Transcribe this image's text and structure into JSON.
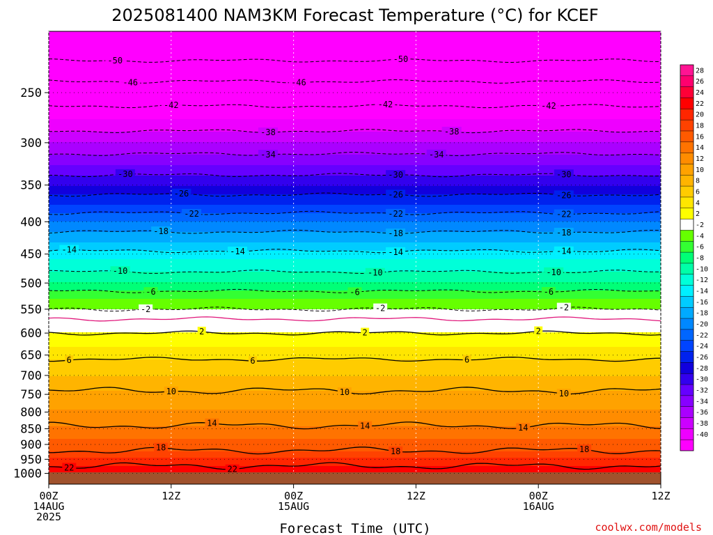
{
  "chart_data": {
    "type": "heatmap",
    "title": "2025081400 NAM3KM Forecast Temperature (°C) for KCEF",
    "xlabel": "Forecast Time (UTC)",
    "x_ticks": [
      {
        "value": 0,
        "lines": [
          "00Z",
          "14AUG",
          "2025"
        ]
      },
      {
        "value": 12,
        "lines": [
          "12Z"
        ]
      },
      {
        "value": 24,
        "lines": [
          "00Z",
          "15AUG"
        ]
      },
      {
        "value": 36,
        "lines": [
          "12Z"
        ]
      },
      {
        "value": 48,
        "lines": [
          "00Z",
          "16AUG"
        ]
      },
      {
        "value": 60,
        "lines": [
          "12Z"
        ]
      }
    ],
    "xlim": [
      0,
      60
    ],
    "ylabel": "",
    "y_scale": "log-pressure",
    "y_ticks": [
      250,
      300,
      350,
      400,
      450,
      500,
      550,
      600,
      650,
      700,
      750,
      800,
      850,
      900,
      950,
      1000
    ],
    "ylim_hpa": [
      200,
      1040
    ],
    "colorbar": {
      "labels": [
        28,
        26,
        24,
        22,
        20,
        18,
        16,
        14,
        12,
        10,
        8,
        6,
        4,
        2,
        -2,
        -4,
        -6,
        -8,
        -10,
        -12,
        -14,
        -16,
        -18,
        -20,
        -22,
        -24,
        -26,
        -28,
        -30,
        -32,
        -34,
        -36,
        -38,
        -40
      ],
      "colors": [
        "#ff1493",
        "#ff006f",
        "#ff0037",
        "#ff0000",
        "#ff2600",
        "#ff4200",
        "#ff5a00",
        "#ff7300",
        "#ff8c00",
        "#ffa200",
        "#ffb400",
        "#ffcc00",
        "#ffe600",
        "#ffff00",
        "#ffffff",
        "#66ff00",
        "#33ff33",
        "#00ff77",
        "#00ffa8",
        "#00ffd9",
        "#00f0ff",
        "#00ccff",
        "#00aaff",
        "#0088ff",
        "#0066ff",
        "#0044ff",
        "#0022ee",
        "#1100dd",
        "#3300ee",
        "#6600ff",
        "#8800ff",
        "#aa00ff",
        "#cc00ff",
        "#ee00ff",
        "#ff00ff"
      ]
    },
    "temperature_profile": [
      {
        "p": 200,
        "t": -56
      },
      {
        "p": 215,
        "t": -52
      },
      {
        "p": 230,
        "t": -48
      },
      {
        "p": 250,
        "t": -44
      },
      {
        "p": 275,
        "t": -40
      },
      {
        "p": 300,
        "t": -36
      },
      {
        "p": 325,
        "t": -32
      },
      {
        "p": 350,
        "t": -28
      },
      {
        "p": 375,
        "t": -24
      },
      {
        "p": 400,
        "t": -20
      },
      {
        "p": 430,
        "t": -16
      },
      {
        "p": 460,
        "t": -12
      },
      {
        "p": 500,
        "t": -8
      },
      {
        "p": 530,
        "t": -4
      },
      {
        "p": 560,
        "t": -1
      },
      {
        "p": 580,
        "t": 1
      },
      {
        "p": 600,
        "t": 2
      },
      {
        "p": 630,
        "t": 4
      },
      {
        "p": 660,
        "t": 6
      },
      {
        "p": 700,
        "t": 8
      },
      {
        "p": 740,
        "t": 10
      },
      {
        "p": 790,
        "t": 12
      },
      {
        "p": 840,
        "t": 14
      },
      {
        "p": 880,
        "t": 16
      },
      {
        "p": 920,
        "t": 18
      },
      {
        "p": 960,
        "t": 21
      },
      {
        "p": 1000,
        "t": 24
      }
    ],
    "contours": [
      {
        "t": -50,
        "style": "dashed",
        "labels": [
          {
            "x": 6.5,
            "text": "-50"
          },
          {
            "x": 34.5,
            "text": "-50"
          }
        ]
      },
      {
        "t": -46,
        "style": "dashed",
        "labels": [
          {
            "x": 8,
            "text": "-46"
          },
          {
            "x": 24.5,
            "text": "-46"
          }
        ]
      },
      {
        "t": -42,
        "style": "dashed",
        "labels": [
          {
            "x": 12,
            "text": "-42"
          },
          {
            "x": 33,
            "text": "-42"
          },
          {
            "x": 49,
            "text": "-42"
          }
        ]
      },
      {
        "t": -38,
        "style": "dashed",
        "labels": [
          {
            "x": 21.5,
            "text": "-38"
          },
          {
            "x": 39.5,
            "text": "-38"
          }
        ]
      },
      {
        "t": -34,
        "style": "dashed",
        "labels": [
          {
            "x": 21.5,
            "text": "-34"
          },
          {
            "x": 38,
            "text": "-34"
          }
        ]
      },
      {
        "t": -30,
        "style": "dashed",
        "labels": [
          {
            "x": 7.5,
            "text": "-30"
          },
          {
            "x": 34,
            "text": "-30"
          },
          {
            "x": 50.5,
            "text": "-30"
          }
        ]
      },
      {
        "t": -26,
        "style": "dashed",
        "labels": [
          {
            "x": 13,
            "text": "-26"
          },
          {
            "x": 34,
            "text": "-26"
          },
          {
            "x": 50.5,
            "text": "-26"
          }
        ]
      },
      {
        "t": -22,
        "style": "dashed",
        "labels": [
          {
            "x": 14,
            "text": "-22"
          },
          {
            "x": 34,
            "text": "-22"
          },
          {
            "x": 50.5,
            "text": "-22"
          }
        ]
      },
      {
        "t": -18,
        "style": "dashed",
        "labels": [
          {
            "x": 11,
            "text": "-18"
          },
          {
            "x": 34,
            "text": "-18"
          },
          {
            "x": 50.5,
            "text": "-18"
          }
        ]
      },
      {
        "t": -14,
        "style": "dashed",
        "labels": [
          {
            "x": 2,
            "text": "-14"
          },
          {
            "x": 18.5,
            "text": "-14"
          },
          {
            "x": 34,
            "text": "-14"
          },
          {
            "x": 50.5,
            "text": "-14"
          }
        ]
      },
      {
        "t": -10,
        "style": "dashed",
        "labels": [
          {
            "x": 7,
            "text": "-10"
          },
          {
            "x": 32,
            "text": "-10"
          },
          {
            "x": 49.5,
            "text": "-10"
          }
        ]
      },
      {
        "t": -6,
        "style": "dashed",
        "labels": [
          {
            "x": 10,
            "text": "-6"
          },
          {
            "x": 30,
            "text": "-6"
          },
          {
            "x": 49,
            "text": "-6"
          }
        ]
      },
      {
        "t": -2,
        "style": "dashed",
        "labels": [
          {
            "x": 9.5,
            "text": "-2"
          },
          {
            "x": 32.5,
            "text": "-2"
          },
          {
            "x": 50.5,
            "text": "-2"
          }
        ]
      },
      {
        "t": 0,
        "style": "freezing",
        "labels": []
      },
      {
        "t": 2,
        "style": "solid",
        "labels": [
          {
            "x": 15,
            "text": "2"
          },
          {
            "x": 31,
            "text": "2"
          },
          {
            "x": 48,
            "text": "2"
          }
        ]
      },
      {
        "t": 6,
        "style": "solid",
        "labels": [
          {
            "x": 2,
            "text": "6"
          },
          {
            "x": 20,
            "text": "6"
          },
          {
            "x": 41,
            "text": "6"
          }
        ]
      },
      {
        "t": 10,
        "style": "solid",
        "labels": [
          {
            "x": 12,
            "text": "10"
          },
          {
            "x": 29,
            "text": "10"
          },
          {
            "x": 50.5,
            "text": "10"
          }
        ]
      },
      {
        "t": 14,
        "style": "solid",
        "labels": [
          {
            "x": 16,
            "text": "14"
          },
          {
            "x": 31,
            "text": "14"
          },
          {
            "x": 46.5,
            "text": "14"
          }
        ]
      },
      {
        "t": 18,
        "style": "solid",
        "labels": [
          {
            "x": 11,
            "text": "18"
          },
          {
            "x": 34,
            "text": "18"
          },
          {
            "x": 52.5,
            "text": "18"
          }
        ]
      },
      {
        "t": 22,
        "style": "solid",
        "labels": [
          {
            "x": 18,
            "text": "22"
          },
          {
            "x": 2,
            "text": "22"
          }
        ]
      }
    ],
    "grid": true
  },
  "footer": {
    "credit": "coolwx.com/models"
  }
}
